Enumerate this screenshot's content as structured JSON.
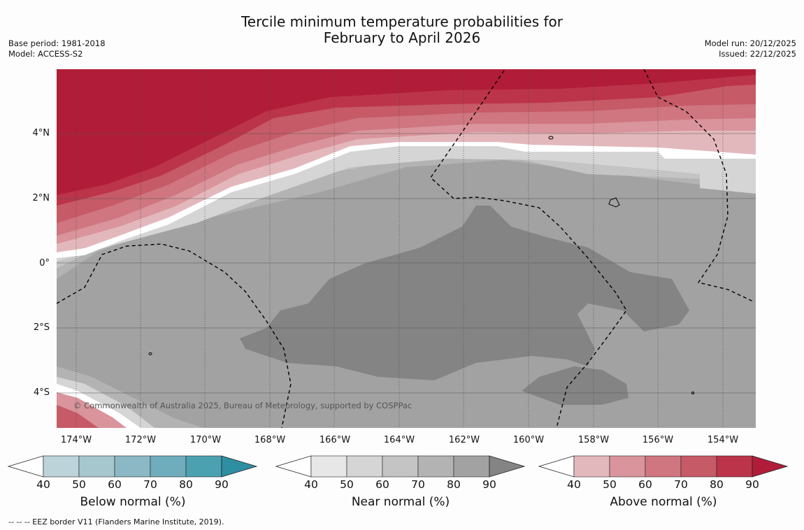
{
  "header": {
    "title_line1": "Tercile minimum temperature probabilities for",
    "title_line2": "February to April 2026",
    "base_period": "Base period: 1981-2018",
    "model": "Model: ACCESS-S2",
    "model_run": "Model run: 20/12/2025",
    "issued": "Issued: 22/12/2025"
  },
  "map": {
    "copyright": "© Commonwealth of Australia 2025, Bureau of Meteorology, supported by COSPPac",
    "lat_labels": [
      "4°N",
      "2°N",
      "0°",
      "2°S",
      "4°S"
    ],
    "lon_labels": [
      "174°W",
      "172°W",
      "170°W",
      "168°W",
      "166°W",
      "164°W",
      "162°W",
      "160°W",
      "158°W",
      "156°W",
      "154°W"
    ]
  },
  "colorbars": [
    {
      "title": "Below normal (%)",
      "ticks": [
        "40",
        "50",
        "60",
        "70",
        "80",
        "90"
      ],
      "colors": [
        "#bcd3da",
        "#a7c7ce",
        "#8bb8c4",
        "#6fadbc",
        "#4ca1b1",
        "#2e8ea2"
      ]
    },
    {
      "title": "Near normal (%)",
      "ticks": [
        "40",
        "50",
        "60",
        "70",
        "80",
        "90"
      ],
      "colors": [
        "#e7e7e7",
        "#d5d5d5",
        "#c4c4c4",
        "#b3b3b3",
        "#a2a2a2",
        "#848484"
      ]
    },
    {
      "title": "Above normal (%)",
      "ticks": [
        "40",
        "50",
        "60",
        "70",
        "80",
        "90"
      ],
      "colors": [
        "#e3b8bd",
        "#d9949c",
        "#cf7680",
        "#c65a66",
        "#bc3449",
        "#b11d38"
      ]
    }
  ],
  "legend_note": "--  --  -- EEZ border V11 (Flanders Marine Institute, 2019)."
}
